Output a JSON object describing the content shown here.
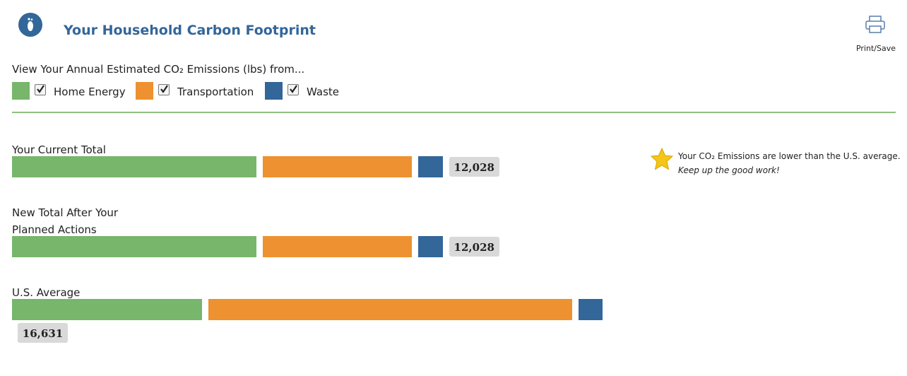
{
  "header": {
    "title": "Your Household Carbon Footprint",
    "print": "Print/Save"
  },
  "note": {
    "line1": "Your CO₂ Emissions are lower than the U.S. average.",
    "line2": "Keep up the good work!"
  },
  "chart_data": {
    "type": "bar",
    "stacked": true,
    "orientation": "horizontal",
    "title": "View Your Annual Estimated CO₂ Emissions (lbs) from...",
    "categories": [
      "Your Current Total",
      "New Total After Your Planned Actions",
      "U.S. Average"
    ],
    "series": [
      {
        "name": "Home Energy",
        "color": "#77b66b",
        "values": [
          7030,
          7030,
          5458
        ]
      },
      {
        "name": "Transportation",
        "color": "#ee9130",
        "values": [
          4287,
          4287,
          10481
        ]
      },
      {
        "name": "Waste",
        "color": "#336699",
        "values": [
          711,
          711,
          692
        ]
      }
    ],
    "totals": [
      12028,
      12028,
      16631
    ],
    "total_labels": [
      "12,028",
      "12,028",
      "16,631"
    ]
  }
}
